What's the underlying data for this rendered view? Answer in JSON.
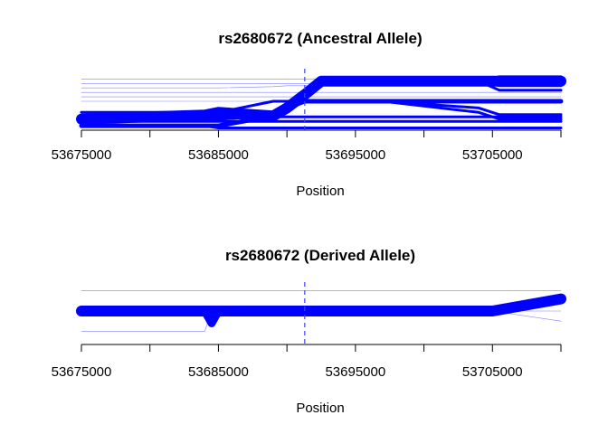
{
  "chart_data": [
    {
      "type": "line",
      "title": "rs2680672 (Ancestral Allele)",
      "xlabel": "Position",
      "ylabel": "",
      "xlim": [
        53675000,
        53710000
      ],
      "xticks": [
        53675000,
        53680000,
        53685000,
        53690000,
        53695000,
        53700000,
        53705000,
        53710000
      ],
      "xtick_labels": [
        "53675000",
        "53685000",
        "53695000",
        "53705000"
      ],
      "vline": {
        "x": 53691300,
        "style": "dashed",
        "color": "#4040ff"
      },
      "line_color": "#0000ff",
      "x": [
        53675000,
        53684000,
        53685000,
        53689000,
        53690000,
        53691300,
        53692500,
        53694500,
        53697000,
        53704000,
        53705500,
        53710000
      ],
      "series": [
        {
          "weight": 0.4,
          "values": [
            11.5,
            11.5,
            11.5,
            11.5,
            11.5,
            11.5,
            11.5,
            11.5,
            11.5,
            11.5,
            11.5,
            11.5
          ]
        },
        {
          "weight": 0.4,
          "values": [
            10.5,
            10.5,
            10.5,
            10.5,
            10.5,
            10.5,
            10.5,
            10.5,
            10.5,
            10.5,
            10.5,
            10.5
          ]
        },
        {
          "weight": 0.4,
          "values": [
            9.5,
            9.5,
            9.5,
            9.8,
            10,
            10,
            10,
            10,
            10,
            10,
            10,
            10
          ]
        },
        {
          "weight": 0.4,
          "values": [
            8.5,
            8.5,
            8.5,
            8.5,
            8.5,
            8.5,
            8.5,
            8.5,
            8.5,
            8.5,
            8.5,
            8.5
          ]
        },
        {
          "weight": 0.4,
          "values": [
            7.5,
            7.5,
            7.5,
            7.5,
            7.5,
            7.5,
            7.5,
            7.5,
            7.5,
            7.5,
            7.5,
            7.5
          ]
        },
        {
          "weight": 0.4,
          "values": [
            6.5,
            6.5,
            6.5,
            6.5,
            6.5,
            6.5,
            6.5,
            6.5,
            6.5,
            6.5,
            6.5,
            6.5
          ]
        },
        {
          "weight": 3.0,
          "values": [
            4,
            4,
            4,
            6.5,
            6.5,
            6.5,
            6.5,
            6.5,
            6.5,
            6.5,
            6.5,
            6.5
          ]
        },
        {
          "weight": 3.0,
          "values": [
            3,
            3,
            3,
            3,
            3,
            3,
            3,
            3,
            3,
            3,
            3,
            3
          ]
        },
        {
          "weight": 3.0,
          "values": [
            2,
            2,
            2,
            2,
            2,
            2,
            2,
            2,
            2,
            2,
            2,
            2
          ]
        },
        {
          "weight": 3.0,
          "values": [
            1,
            1,
            0.5,
            0.5,
            0.5,
            0.5,
            0.5,
            0.5,
            0.5,
            0.5,
            0.5,
            0.5
          ]
        },
        {
          "weight": 12.0,
          "values": [
            2.5,
            3.4,
            4,
            3.2,
            5,
            8,
            11,
            11,
            11,
            11,
            11,
            11
          ]
        },
        {
          "weight": 3.0,
          "values": [
            2.5,
            2.5,
            2.5,
            3.2,
            5,
            8,
            11,
            11,
            11,
            11,
            12,
            12
          ]
        },
        {
          "weight": 3.0,
          "values": [
            2.5,
            2.5,
            2.5,
            3.2,
            5,
            8,
            11,
            11,
            11,
            11,
            10,
            10
          ]
        },
        {
          "weight": 3.0,
          "values": [
            2.5,
            2.5,
            2.5,
            3.2,
            5,
            8,
            11,
            11,
            11,
            11,
            9,
            9
          ]
        },
        {
          "weight": 5.0,
          "values": [
            1,
            1,
            1,
            3.2,
            5,
            6.5,
            6.5,
            6.5,
            6.5,
            6.5,
            6.5,
            6.5
          ]
        },
        {
          "weight": 3.0,
          "values": [
            1,
            1,
            1,
            3.2,
            5,
            6.5,
            6.5,
            6.5,
            6.5,
            6.5,
            6.5,
            6.5
          ]
        },
        {
          "weight": 3.0,
          "values": [
            1,
            1,
            1,
            3.2,
            5,
            6.5,
            6.5,
            6.5,
            6.5,
            5,
            3.5,
            3.5
          ]
        },
        {
          "weight": 3.0,
          "values": [
            1,
            1,
            1,
            3.2,
            5,
            6.5,
            6.5,
            6.5,
            6.5,
            4,
            2.5,
            2.5
          ]
        }
      ],
      "ylim": [
        0,
        13
      ],
      "grid": false
    },
    {
      "type": "line",
      "title": "rs2680672 (Derived Allele)",
      "xlabel": "Position",
      "ylabel": "",
      "xlim": [
        53675000,
        53710000
      ],
      "xticks": [
        53675000,
        53680000,
        53685000,
        53690000,
        53695000,
        53700000,
        53705000,
        53710000
      ],
      "xtick_labels": [
        "53675000",
        "53685000",
        "53695000",
        "53705000"
      ],
      "vline": {
        "x": 53691300,
        "style": "dashed",
        "color": "#4040ff"
      },
      "line_color": "#0000ff",
      "x": [
        53675000,
        53684000,
        53684500,
        53685000,
        53705000,
        53710000
      ],
      "series": [
        {
          "weight": 0.4,
          "values": [
            9,
            9,
            9,
            9,
            9,
            9
          ]
        },
        {
          "weight": 0.4,
          "values": [
            1,
            1,
            5,
            5,
            5,
            5
          ]
        },
        {
          "weight": 0.4,
          "values": [
            5,
            5,
            5,
            5,
            5,
            3
          ]
        },
        {
          "weight": 9.0,
          "values": [
            5,
            5,
            2.6,
            5,
            5,
            7.4
          ]
        },
        {
          "weight": 12.0,
          "values": [
            5,
            5,
            5,
            5,
            5,
            7.4
          ]
        }
      ],
      "ylim": [
        0,
        10
      ],
      "grid": false
    }
  ]
}
